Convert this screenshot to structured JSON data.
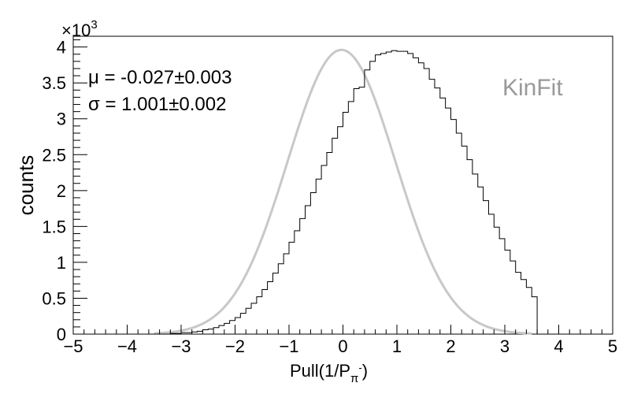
{
  "chart_data": {
    "type": "histogram",
    "title": "",
    "xlabel_main": "Pull(1/P",
    "xlabel_sub": "π",
    "xlabel_sup": "-",
    "xlabel_close": ")",
    "ylabel": "counts",
    "y_multiplier_base": "×10",
    "y_multiplier_exp": "3",
    "xlim": [
      -5,
      5
    ],
    "ylim": [
      0,
      4.15
    ],
    "x_ticks": [
      -5,
      -4,
      -3,
      -2,
      -1,
      0,
      1,
      2,
      3,
      4,
      5
    ],
    "x_tick_labels": [
      "−5",
      "−4",
      "−3",
      "−2",
      "−1",
      "0",
      "1",
      "2",
      "3",
      "4",
      "5"
    ],
    "y_ticks": [
      0,
      0.5,
      1,
      1.5,
      2,
      2.5,
      3,
      3.5,
      4
    ],
    "y_tick_labels": [
      "0",
      "0.5",
      "1",
      "1.5",
      "2",
      "2.5",
      "3",
      "3.5",
      "4"
    ],
    "grid": false,
    "bin_width": 0.1,
    "bins_x_range": [
      -3.5,
      3.5
    ],
    "series": [
      {
        "kind": "histogram",
        "color": "#000000",
        "values": [
          0.0,
          0.0,
          0.0,
          0.01,
          0.01,
          0.02,
          0.02,
          0.03,
          0.04,
          0.06,
          0.07,
          0.09,
          0.12,
          0.15,
          0.19,
          0.23,
          0.29,
          0.36,
          0.43,
          0.52,
          0.62,
          0.73,
          0.85,
          0.98,
          1.12,
          1.28,
          1.44,
          1.61,
          1.79,
          1.97,
          2.16,
          2.35,
          2.53,
          2.73,
          2.89,
          3.09,
          3.24,
          3.42,
          3.44,
          3.68,
          3.8,
          3.89,
          3.91,
          3.93,
          3.95,
          3.94,
          3.94,
          3.91,
          3.85,
          3.78,
          3.7,
          3.55,
          3.43,
          3.29,
          3.15,
          2.99,
          2.8,
          2.62,
          2.43,
          2.23,
          2.05,
          1.86,
          1.67,
          1.49,
          1.33,
          1.17,
          1.02,
          0.86,
          0.76,
          0.65,
          0.52
        ]
      },
      {
        "kind": "fit",
        "function": "gaussian",
        "color": "#c8c8c8",
        "mean": -0.027,
        "sigma": 1.001,
        "amplitude": 3.96,
        "x_range": [
          -3.5,
          3.5
        ]
      }
    ],
    "annotations": {
      "mu_label": "μ = -0.027±0.003",
      "sigma_label": "σ = 1.001±0.002",
      "tag": "KinFit",
      "tag_color": "#999999"
    }
  }
}
